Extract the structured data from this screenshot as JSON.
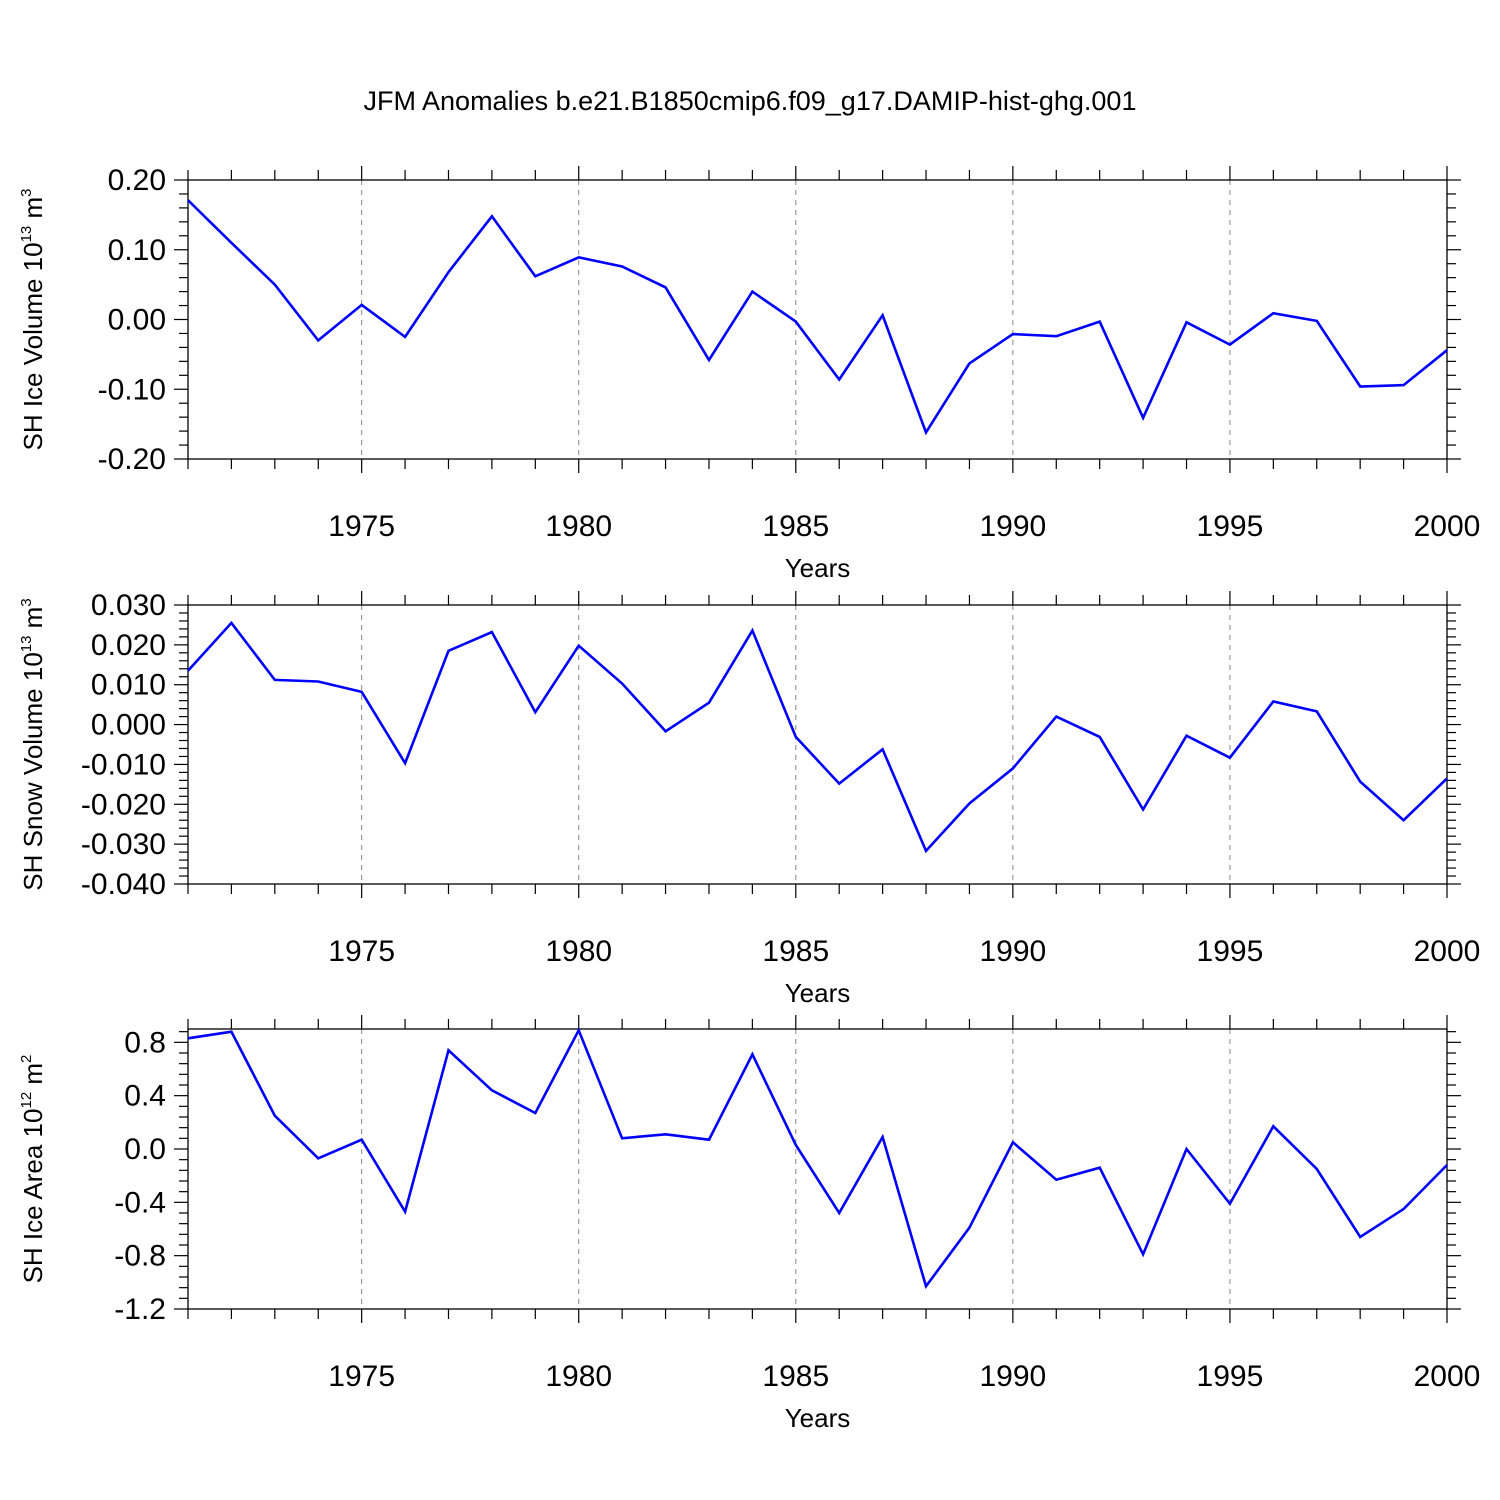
{
  "title": "JFM Anomalies b.e21.B1850cmip6.f09_g17.DAMIP-hist-ghg.001",
  "chart_data": [
    {
      "type": "line",
      "ylabel": {
        "text": "SH Ice Volume 10",
        "sup": "13",
        "unit": " m",
        "unit_sup": "3"
      },
      "xlabel": "Years",
      "xlim": [
        1971,
        2000
      ],
      "ylim": [
        -0.2,
        0.2
      ],
      "yticks": [
        0.2,
        0.1,
        0.0,
        -0.1,
        -0.2
      ],
      "ytick_labels": [
        "0.20",
        "0.10",
        "0.00",
        "-0.10",
        "-0.20"
      ],
      "xticks": [
        1975,
        1980,
        1985,
        1990,
        1995,
        2000
      ],
      "xtick_labels": [
        "1975",
        "1980",
        "1985",
        "1990",
        "1995",
        "2000"
      ],
      "grid": "vertical dashed at labeled years",
      "line_color": "#0000ff",
      "x": [
        1971,
        1972,
        1973,
        1974,
        1975,
        1976,
        1977,
        1978,
        1979,
        1980,
        1981,
        1982,
        1983,
        1984,
        1985,
        1986,
        1987,
        1988,
        1989,
        1990,
        1991,
        1992,
        1993,
        1994,
        1995,
        1996,
        1997,
        1998,
        1999,
        2000
      ],
      "values": [
        0.171,
        0.11,
        0.05,
        -0.03,
        0.021,
        -0.025,
        0.068,
        0.148,
        0.062,
        0.089,
        0.076,
        0.046,
        -0.058,
        0.04,
        -0.003,
        -0.086,
        0.006,
        -0.162,
        -0.063,
        -0.021,
        -0.024,
        -0.003,
        -0.141,
        -0.004,
        -0.036,
        0.009,
        -0.002,
        -0.096,
        -0.094,
        -0.044
      ]
    },
    {
      "type": "line",
      "ylabel": {
        "text": "SH Snow Volume 10",
        "sup": "13",
        "unit": " m",
        "unit_sup": "3"
      },
      "xlabel": "Years",
      "xlim": [
        1971,
        2000
      ],
      "ylim": [
        -0.04,
        0.03
      ],
      "yticks": [
        0.03,
        0.02,
        0.01,
        0.0,
        -0.01,
        -0.02,
        -0.03,
        -0.04
      ],
      "ytick_labels": [
        "0.030",
        "0.020",
        "0.010",
        "0.000",
        "-0.010",
        "-0.020",
        "-0.030",
        "-0.040"
      ],
      "xticks": [
        1975,
        1980,
        1985,
        1990,
        1995,
        2000
      ],
      "xtick_labels": [
        "1975",
        "1980",
        "1985",
        "1990",
        "1995",
        "2000"
      ],
      "grid": "vertical dashed at labeled years",
      "line_color": "#0000ff",
      "x": [
        1971,
        1972,
        1973,
        1974,
        1975,
        1976,
        1977,
        1978,
        1979,
        1980,
        1981,
        1982,
        1983,
        1984,
        1985,
        1986,
        1987,
        1988,
        1989,
        1990,
        1991,
        1992,
        1993,
        1994,
        1995,
        1996,
        1997,
        1998,
        1999,
        2000
      ],
      "values": [
        0.0135,
        0.0255,
        0.0112,
        0.0108,
        0.0082,
        -0.0097,
        0.0185,
        0.0232,
        0.0031,
        0.0198,
        0.0103,
        -0.0017,
        0.0055,
        0.0236,
        -0.0031,
        -0.0148,
        -0.0062,
        -0.0317,
        -0.0198,
        -0.011,
        0.002,
        -0.0031,
        -0.0213,
        -0.0028,
        -0.0083,
        0.0058,
        0.0033,
        -0.0143,
        -0.024,
        -0.0135
      ]
    },
    {
      "type": "line",
      "ylabel": {
        "text": "SH Ice Area 10",
        "sup": "12",
        "unit": " m",
        "unit_sup": "2"
      },
      "xlabel": "Years",
      "xlim": [
        1971,
        2000
      ],
      "ylim": [
        -1.2,
        0.9
      ],
      "yticks": [
        0.8,
        0.4,
        0.0,
        -0.4,
        -0.8,
        -1.2
      ],
      "ytick_labels": [
        "0.8",
        "0.4",
        "0.0",
        "-0.4",
        "-0.8",
        "-1.2"
      ],
      "xticks": [
        1975,
        1980,
        1985,
        1990,
        1995,
        2000
      ],
      "xtick_labels": [
        "1975",
        "1980",
        "1985",
        "1990",
        "1995",
        "2000"
      ],
      "grid": "vertical dashed at labeled years",
      "line_color": "#0000ff",
      "x": [
        1971,
        1972,
        1973,
        1974,
        1975,
        1976,
        1977,
        1978,
        1979,
        1980,
        1981,
        1982,
        1983,
        1984,
        1985,
        1986,
        1987,
        1988,
        1989,
        1990,
        1991,
        1992,
        1993,
        1994,
        1995,
        1996,
        1997,
        1998,
        1999,
        2000
      ],
      "values": [
        0.83,
        0.88,
        0.25,
        -0.07,
        0.07,
        -0.47,
        0.74,
        0.44,
        0.27,
        0.89,
        0.08,
        0.11,
        0.07,
        0.71,
        0.03,
        -0.48,
        0.09,
        -1.03,
        -0.59,
        0.05,
        -0.23,
        -0.14,
        -0.79,
        0.0,
        -0.41,
        0.17,
        -0.15,
        -0.66,
        -0.45,
        -0.12
      ]
    }
  ]
}
